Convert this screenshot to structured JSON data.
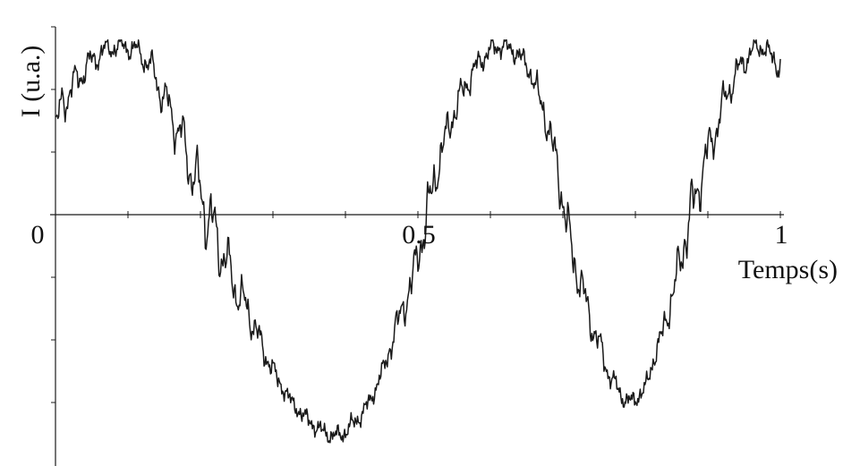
{
  "chart_data": {
    "type": "line",
    "title": "",
    "xlabel": "Temps(s)",
    "ylabel": "I (u.a.)",
    "xlim": [
      0,
      1
    ],
    "ylim": [
      -1.2,
      1.0
    ],
    "x_ticks": [
      {
        "value": 0,
        "label": "0"
      },
      {
        "value": 0.5,
        "label": "0.5"
      },
      {
        "value": 1,
        "label": "1"
      }
    ],
    "y_tick_labels_shown": false,
    "grid": false,
    "legend": "none",
    "line_color": "#1a1a1a",
    "series": [
      {
        "x": [
          0,
          0.01,
          0.03,
          0.05,
          0.07,
          0.09,
          0.11,
          0.13,
          0.15,
          0.17,
          0.19,
          0.21,
          0.23,
          0.25,
          0.27,
          0.29,
          0.31,
          0.33,
          0.35,
          0.37,
          0.39,
          0.41,
          0.43,
          0.45,
          0.47,
          0.49,
          0.51,
          0.53,
          0.55,
          0.57,
          0.59,
          0.61,
          0.63,
          0.65,
          0.67,
          0.69,
          0.71,
          0.73,
          0.75,
          0.77,
          0.79,
          0.81,
          0.83,
          0.85,
          0.87,
          0.89,
          0.91,
          0.93,
          0.95,
          0.97,
          0.99,
          1.0
        ],
        "y": [
          0.45,
          0.6,
          0.72,
          0.82,
          0.88,
          0.9,
          0.88,
          0.8,
          0.62,
          0.45,
          0.22,
          0.0,
          -0.2,
          -0.4,
          -0.55,
          -0.75,
          -0.9,
          -1.02,
          -1.1,
          -1.16,
          -1.18,
          -1.12,
          -1.02,
          -0.85,
          -0.6,
          -0.38,
          -0.05,
          0.3,
          0.55,
          0.72,
          0.84,
          0.9,
          0.88,
          0.8,
          0.6,
          0.3,
          -0.15,
          -0.45,
          -0.7,
          -0.9,
          -1.0,
          -0.95,
          -0.72,
          -0.45,
          -0.1,
          0.2,
          0.45,
          0.68,
          0.82,
          0.9,
          0.84,
          0.78
        ]
      }
    ]
  }
}
